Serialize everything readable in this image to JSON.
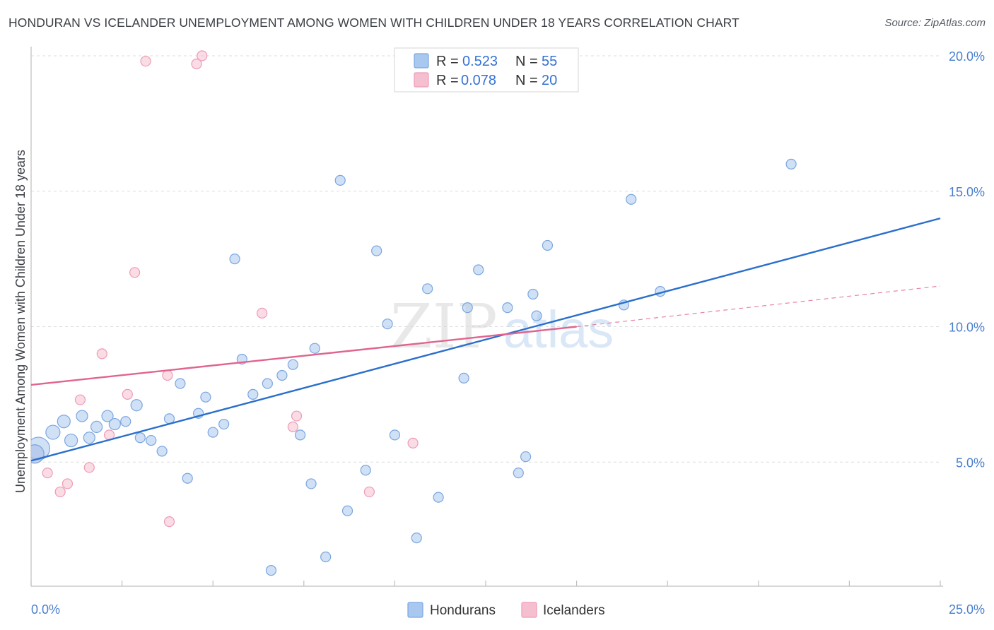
{
  "header": {
    "title": "HONDURAN VS ICELANDER UNEMPLOYMENT AMONG WOMEN WITH CHILDREN UNDER 18 YEARS CORRELATION CHART",
    "source": "Source: ZipAtlas.com"
  },
  "watermark": "ZIPatlas",
  "colors": {
    "hondurans": "#a9c8ef",
    "hondurans_stroke": "#7aa6e0",
    "hondurans_line": "#2a6fcc",
    "icelanders": "#f6bfd0",
    "icelanders_stroke": "#ee9bb6",
    "icelanders_line": "#e0648f",
    "tick_text": "#4a7fcf",
    "grid": "#dcdcdc"
  },
  "legend": {
    "r_label": "R =",
    "n_label": "N =",
    "rows": [
      {
        "series": "Hondurans",
        "r": "0.523",
        "n": "55"
      },
      {
        "series": "Icelanders",
        "r": "0.078",
        "n": "20"
      }
    ]
  },
  "chart_data": {
    "type": "scatter",
    "title": "HONDURAN VS ICELANDER UNEMPLOYMENT AMONG WOMEN WITH CHILDREN UNDER 18 YEARS CORRELATION CHART",
    "xlabel": "",
    "ylabel": "Unemployment Among Women with Children Under 18 years",
    "xlim": [
      0,
      25
    ],
    "ylim": [
      0,
      20.5
    ],
    "x_tick_labels": [
      "0.0%",
      "25.0%"
    ],
    "y_ticks": [
      5,
      10,
      15,
      20
    ],
    "y_tick_labels": [
      "5.0%",
      "10.0%",
      "15.0%",
      "20.0%"
    ],
    "grid": true,
    "legend_position": "top-center",
    "series": [
      {
        "name": "Hondurans",
        "points": [
          [
            0.2,
            5.5,
            16
          ],
          [
            0.6,
            6.1,
            10
          ],
          [
            0.9,
            6.5,
            9
          ],
          [
            1.1,
            5.8,
            9
          ],
          [
            1.4,
            6.7,
            8
          ],
          [
            1.6,
            5.9,
            8
          ],
          [
            1.8,
            6.3,
            8
          ],
          [
            2.1,
            6.7,
            8
          ],
          [
            2.3,
            6.4,
            8
          ],
          [
            2.6,
            6.5,
            7
          ],
          [
            2.9,
            7.1,
            8
          ],
          [
            3.0,
            5.9,
            7
          ],
          [
            3.3,
            5.8,
            7
          ],
          [
            3.6,
            5.4,
            7
          ],
          [
            3.8,
            6.6,
            7
          ],
          [
            4.1,
            7.9,
            7
          ],
          [
            4.3,
            4.4,
            7
          ],
          [
            4.6,
            6.8,
            7
          ],
          [
            4.8,
            7.4,
            7
          ],
          [
            5.0,
            6.1,
            7
          ],
          [
            5.3,
            6.4,
            7
          ],
          [
            5.6,
            12.5,
            7
          ],
          [
            5.8,
            8.8,
            7
          ],
          [
            6.1,
            7.5,
            7
          ],
          [
            6.5,
            7.9,
            7
          ],
          [
            6.6,
            1.0,
            7
          ],
          [
            6.9,
            8.2,
            7
          ],
          [
            7.2,
            8.6,
            7
          ],
          [
            7.4,
            6.0,
            7
          ],
          [
            7.7,
            4.2,
            7
          ],
          [
            7.8,
            9.2,
            7
          ],
          [
            8.1,
            1.5,
            7
          ],
          [
            8.5,
            15.4,
            7
          ],
          [
            8.7,
            3.2,
            7
          ],
          [
            9.2,
            4.7,
            7
          ],
          [
            9.5,
            12.8,
            7
          ],
          [
            9.8,
            10.1,
            7
          ],
          [
            10.0,
            6.0,
            7
          ],
          [
            10.6,
            2.2,
            7
          ],
          [
            10.9,
            11.4,
            7
          ],
          [
            11.2,
            3.7,
            7
          ],
          [
            11.9,
            8.1,
            7
          ],
          [
            12.0,
            10.7,
            7
          ],
          [
            12.3,
            12.1,
            7
          ],
          [
            13.1,
            10.7,
            7
          ],
          [
            13.4,
            4.6,
            7
          ],
          [
            13.6,
            5.2,
            7
          ],
          [
            13.8,
            11.2,
            7
          ],
          [
            13.9,
            10.4,
            7
          ],
          [
            14.2,
            13.0,
            7
          ],
          [
            16.3,
            10.8,
            7
          ],
          [
            16.5,
            14.7,
            7
          ],
          [
            17.3,
            11.3,
            7
          ],
          [
            20.9,
            16.0,
            7
          ],
          [
            0.1,
            5.3,
            13
          ]
        ],
        "trend": {
          "x": [
            0,
            25
          ],
          "y": [
            5.05,
            14.0
          ]
        }
      },
      {
        "name": "Icelanders",
        "points": [
          [
            0.1,
            5.3,
            13
          ],
          [
            0.45,
            4.6,
            7
          ],
          [
            0.8,
            3.9,
            7
          ],
          [
            1.0,
            4.2,
            7
          ],
          [
            1.35,
            7.3,
            7
          ],
          [
            1.6,
            4.8,
            7
          ],
          [
            1.95,
            9.0,
            7
          ],
          [
            2.15,
            6.0,
            7
          ],
          [
            2.65,
            7.5,
            7
          ],
          [
            2.85,
            12.0,
            7
          ],
          [
            3.15,
            19.8,
            7
          ],
          [
            3.75,
            8.2,
            7
          ],
          [
            3.8,
            2.8,
            7
          ],
          [
            4.55,
            19.7,
            7
          ],
          [
            4.7,
            20.0,
            7
          ],
          [
            6.35,
            10.5,
            7
          ],
          [
            7.2,
            6.3,
            7
          ],
          [
            7.3,
            6.7,
            7
          ],
          [
            9.3,
            3.9,
            7
          ],
          [
            10.5,
            5.7,
            7
          ]
        ],
        "trend": {
          "x": [
            0,
            15
          ],
          "y": [
            7.85,
            10.0
          ]
        },
        "trend_extension": {
          "x": [
            15,
            25
          ],
          "y": [
            10.0,
            11.5
          ]
        }
      }
    ]
  },
  "bottom_legend": [
    {
      "label": "Hondurans"
    },
    {
      "label": "Icelanders"
    }
  ]
}
